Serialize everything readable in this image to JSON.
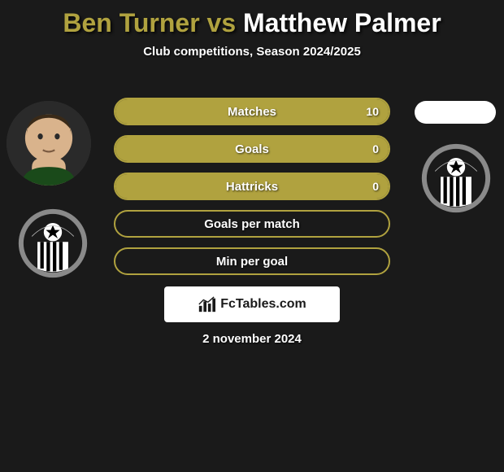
{
  "title": {
    "player1": "Ben Turner",
    "vs": " vs ",
    "player2": "Matthew Palmer",
    "color1": "#b0a23f",
    "color2": "#ffffff"
  },
  "subtitle": "Club competitions, Season 2024/2025",
  "stats": {
    "bar_border_color": "#b0a23f",
    "bar_fill_color": "#b0a23f",
    "rows": [
      {
        "label": "Matches",
        "left": "",
        "right": "10",
        "fill_pct": 100
      },
      {
        "label": "Goals",
        "left": "",
        "right": "0",
        "fill_pct": 100
      },
      {
        "label": "Hattricks",
        "left": "",
        "right": "0",
        "fill_pct": 100
      },
      {
        "label": "Goals per match",
        "left": "",
        "right": "",
        "fill_pct": 0
      },
      {
        "label": "Min per goal",
        "left": "",
        "right": "",
        "fill_pct": 0
      }
    ]
  },
  "avatars": {
    "player1_bg": "#4a3a2a",
    "player2_bg": "#ffffff"
  },
  "club_badge": {
    "outer": "#8a8a8a",
    "inner": "#ffffff",
    "stripes": "#000000",
    "ball_bg": "#000000"
  },
  "watermark": {
    "icon": "chart-bars",
    "text": "FcTables.com"
  },
  "date": "2 november 2024"
}
